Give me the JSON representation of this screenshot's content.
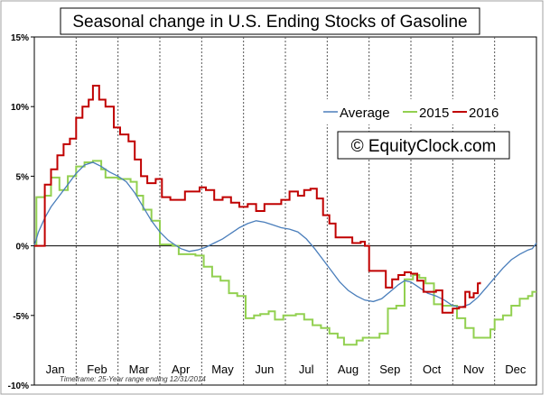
{
  "chart_data": {
    "type": "line",
    "title": "Seasonal change in U.S. Ending Stocks of Gasoline",
    "watermark": "© EquityClock.com",
    "footnote": "Timeframe: 25-Year range ending 12/31/2014",
    "x_categories": [
      "Jan",
      "Feb",
      "Mar",
      "Apr",
      "May",
      "Jun",
      "Jul",
      "Aug",
      "Sep",
      "Oct",
      "Nov",
      "Dec"
    ],
    "y_ticks": [
      "15%",
      "10%",
      "5%",
      "0%",
      "-5%",
      "-10%"
    ],
    "ylim": [
      -10,
      15
    ],
    "xlim": [
      0,
      12
    ],
    "grid_vertical": true,
    "legend_position": "top-right",
    "series": [
      {
        "name": "Average",
        "color": "#4a7ebb",
        "step": false,
        "points": [
          [
            0.0,
            0.0
          ],
          [
            0.1,
            1.0
          ],
          [
            0.25,
            2.0
          ],
          [
            0.4,
            2.8
          ],
          [
            0.6,
            3.6
          ],
          [
            0.8,
            4.4
          ],
          [
            1.0,
            5.2
          ],
          [
            1.2,
            5.8
          ],
          [
            1.4,
            6.0
          ],
          [
            1.6,
            5.7
          ],
          [
            1.8,
            5.3
          ],
          [
            2.0,
            5.0
          ],
          [
            2.2,
            4.6
          ],
          [
            2.4,
            3.8
          ],
          [
            2.6,
            2.8
          ],
          [
            2.8,
            1.8
          ],
          [
            3.0,
            1.0
          ],
          [
            3.2,
            0.4
          ],
          [
            3.35,
            0.1
          ],
          [
            3.5,
            -0.2
          ],
          [
            3.7,
            -0.4
          ],
          [
            3.9,
            -0.3
          ],
          [
            4.1,
            -0.1
          ],
          [
            4.3,
            0.2
          ],
          [
            4.5,
            0.5
          ],
          [
            4.7,
            0.9
          ],
          [
            4.9,
            1.3
          ],
          [
            5.1,
            1.6
          ],
          [
            5.3,
            1.8
          ],
          [
            5.5,
            1.7
          ],
          [
            5.7,
            1.5
          ],
          [
            5.9,
            1.3
          ],
          [
            6.1,
            1.2
          ],
          [
            6.3,
            1.0
          ],
          [
            6.5,
            0.5
          ],
          [
            6.7,
            -0.2
          ],
          [
            6.9,
            -1.0
          ],
          [
            7.1,
            -1.8
          ],
          [
            7.3,
            -2.6
          ],
          [
            7.5,
            -3.2
          ],
          [
            7.7,
            -3.6
          ],
          [
            7.9,
            -3.9
          ],
          [
            8.1,
            -4.0
          ],
          [
            8.3,
            -3.8
          ],
          [
            8.5,
            -3.3
          ],
          [
            8.7,
            -2.8
          ],
          [
            8.85,
            -2.5
          ],
          [
            9.0,
            -2.6
          ],
          [
            9.2,
            -3.0
          ],
          [
            9.4,
            -3.4
          ],
          [
            9.6,
            -3.6
          ],
          [
            9.8,
            -3.9
          ],
          [
            10.0,
            -4.3
          ],
          [
            10.2,
            -4.4
          ],
          [
            10.4,
            -4.2
          ],
          [
            10.6,
            -3.7
          ],
          [
            10.8,
            -3.0
          ],
          [
            11.0,
            -2.3
          ],
          [
            11.2,
            -1.6
          ],
          [
            11.4,
            -1.0
          ],
          [
            11.6,
            -0.6
          ],
          [
            11.8,
            -0.3
          ],
          [
            11.9,
            -0.2
          ],
          [
            12.0,
            0.2
          ]
        ]
      },
      {
        "name": "2015",
        "color": "#92d050",
        "step": true,
        "points": [
          [
            0.0,
            0.0
          ],
          [
            0.05,
            3.5
          ],
          [
            0.25,
            3.6
          ],
          [
            0.4,
            4.9
          ],
          [
            0.6,
            4.0
          ],
          [
            0.8,
            5.0
          ],
          [
            1.0,
            5.7
          ],
          [
            1.2,
            6.0
          ],
          [
            1.4,
            6.1
          ],
          [
            1.6,
            5.5
          ],
          [
            1.7,
            4.9
          ],
          [
            2.0,
            4.8
          ],
          [
            2.3,
            4.6
          ],
          [
            2.45,
            3.6
          ],
          [
            2.6,
            2.6
          ],
          [
            2.8,
            1.8
          ],
          [
            3.0,
            0.1
          ],
          [
            3.3,
            0.0
          ],
          [
            3.45,
            -0.6
          ],
          [
            3.75,
            -0.6
          ],
          [
            3.85,
            -0.7
          ],
          [
            4.05,
            -1.5
          ],
          [
            4.25,
            -2.2
          ],
          [
            4.45,
            -2.5
          ],
          [
            4.65,
            -3.4
          ],
          [
            4.85,
            -3.6
          ],
          [
            5.05,
            -5.2
          ],
          [
            5.25,
            -5.0
          ],
          [
            5.4,
            -4.9
          ],
          [
            5.6,
            -4.7
          ],
          [
            5.75,
            -5.3
          ],
          [
            5.95,
            -5.0
          ],
          [
            6.1,
            -5.0
          ],
          [
            6.25,
            -4.9
          ],
          [
            6.45,
            -5.3
          ],
          [
            6.65,
            -5.7
          ],
          [
            6.85,
            -5.9
          ],
          [
            7.05,
            -6.3
          ],
          [
            7.25,
            -6.6
          ],
          [
            7.4,
            -7.1
          ],
          [
            7.7,
            -6.8
          ],
          [
            7.85,
            -6.6
          ],
          [
            8.05,
            -6.6
          ],
          [
            8.25,
            -6.3
          ],
          [
            8.45,
            -4.5
          ],
          [
            8.65,
            -4.3
          ],
          [
            8.85,
            -2.4
          ],
          [
            9.05,
            -2.1
          ],
          [
            9.2,
            -2.3
          ],
          [
            9.35,
            -2.7
          ],
          [
            9.55,
            -4.2
          ],
          [
            9.75,
            -4.3
          ],
          [
            9.95,
            -4.3
          ],
          [
            10.1,
            -5.2
          ],
          [
            10.3,
            -5.9
          ],
          [
            10.5,
            -6.6
          ],
          [
            10.7,
            -6.6
          ],
          [
            10.9,
            -6.0
          ],
          [
            11.0,
            -5.3
          ],
          [
            11.2,
            -5.0
          ],
          [
            11.4,
            -4.3
          ],
          [
            11.6,
            -3.8
          ],
          [
            11.8,
            -3.6
          ],
          [
            11.9,
            -3.3
          ],
          [
            12.0,
            -3.3
          ]
        ]
      },
      {
        "name": "2016",
        "color": "#c00000",
        "step": true,
        "points": [
          [
            0.0,
            0.0
          ],
          [
            0.15,
            0.0
          ],
          [
            0.25,
            4.4
          ],
          [
            0.4,
            5.5
          ],
          [
            0.55,
            6.5
          ],
          [
            0.7,
            7.3
          ],
          [
            0.85,
            7.7
          ],
          [
            1.0,
            9.2
          ],
          [
            1.15,
            10.0
          ],
          [
            1.3,
            10.5
          ],
          [
            1.4,
            11.5
          ],
          [
            1.55,
            10.5
          ],
          [
            1.7,
            10.0
          ],
          [
            1.9,
            8.5
          ],
          [
            2.05,
            8.0
          ],
          [
            2.25,
            7.5
          ],
          [
            2.4,
            6.2
          ],
          [
            2.55,
            5.0
          ],
          [
            2.7,
            4.5
          ],
          [
            2.9,
            4.8
          ],
          [
            3.05,
            3.5
          ],
          [
            3.25,
            3.3
          ],
          [
            3.4,
            3.3
          ],
          [
            3.6,
            3.9
          ],
          [
            3.8,
            3.9
          ],
          [
            3.95,
            4.2
          ],
          [
            4.1,
            4.0
          ],
          [
            4.3,
            3.3
          ],
          [
            4.5,
            3.5
          ],
          [
            4.7,
            3.1
          ],
          [
            4.9,
            2.8
          ],
          [
            5.1,
            3.0
          ],
          [
            5.3,
            2.5
          ],
          [
            5.5,
            3.0
          ],
          [
            5.7,
            3.0
          ],
          [
            5.9,
            3.3
          ],
          [
            6.1,
            3.9
          ],
          [
            6.3,
            3.6
          ],
          [
            6.45,
            4.0
          ],
          [
            6.6,
            4.1
          ],
          [
            6.75,
            3.4
          ],
          [
            6.9,
            2.2
          ],
          [
            7.05,
            1.6
          ],
          [
            7.2,
            0.6
          ],
          [
            7.4,
            0.6
          ],
          [
            7.6,
            0.2
          ],
          [
            7.8,
            0.3
          ],
          [
            7.9,
            0.0
          ],
          [
            8.0,
            -1.8
          ],
          [
            8.15,
            -1.8
          ],
          [
            8.3,
            -1.8
          ],
          [
            8.4,
            -3.0
          ],
          [
            8.55,
            -2.4
          ],
          [
            8.7,
            -2.1
          ],
          [
            8.85,
            -1.9
          ],
          [
            9.0,
            -2.0
          ],
          [
            9.15,
            -2.5
          ],
          [
            9.3,
            -3.3
          ],
          [
            9.45,
            -3.3
          ],
          [
            9.6,
            -3.2
          ],
          [
            9.75,
            -4.8
          ],
          [
            9.9,
            -4.8
          ],
          [
            10.0,
            -4.5
          ],
          [
            10.15,
            -4.4
          ],
          [
            10.3,
            -3.3
          ],
          [
            10.4,
            -3.7
          ],
          [
            10.5,
            -3.4
          ],
          [
            10.6,
            -2.7
          ],
          [
            10.65,
            -2.6
          ]
        ]
      }
    ]
  }
}
